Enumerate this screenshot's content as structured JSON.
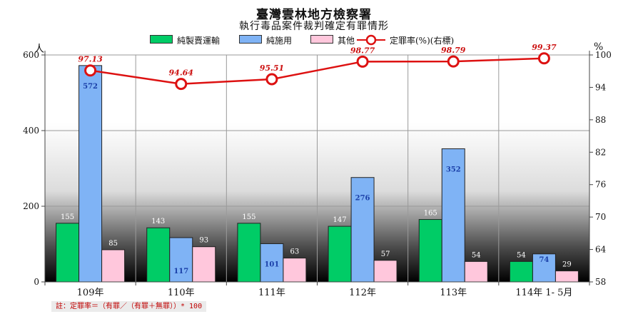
{
  "chart_data": {
    "type": "bar",
    "title": "臺灣雲林地方檢察署",
    "subtitle": "執行毒品案件裁判確定有罪情形",
    "categories": [
      "109年",
      "110年",
      "111年",
      "112年",
      "113年",
      "114年 1- 5月"
    ],
    "series": [
      {
        "name": "純製賣運輸",
        "type": "bar",
        "axis": "left",
        "color": "#00cc66",
        "values": [
          155,
          143,
          155,
          147,
          165,
          54
        ]
      },
      {
        "name": "純施用",
        "type": "bar",
        "axis": "left",
        "color": "#7fb3f5",
        "values": [
          572,
          117,
          101,
          276,
          352,
          74
        ]
      },
      {
        "name": "其他",
        "type": "bar",
        "axis": "left",
        "color": "#ffc7dc",
        "values": [
          85,
          93,
          63,
          57,
          54,
          29
        ]
      },
      {
        "name": "定罪率(%)(右標)",
        "type": "line",
        "axis": "right",
        "color": "#dd1111",
        "values": [
          97.13,
          94.64,
          95.51,
          98.77,
          98.79,
          99.37
        ]
      }
    ],
    "y_left": {
      "unit": "人",
      "ylim": [
        0,
        600
      ],
      "ticks": [
        0,
        200,
        400,
        600
      ]
    },
    "y_right": {
      "unit": "%",
      "ylim": [
        58,
        100
      ],
      "ticks": [
        58,
        64,
        70,
        76,
        82,
        88,
        94,
        100
      ]
    },
    "grid": true,
    "legend_position": "top"
  },
  "note": "註：定罪率＝（有罪／（有罪＋無罪））* 100"
}
